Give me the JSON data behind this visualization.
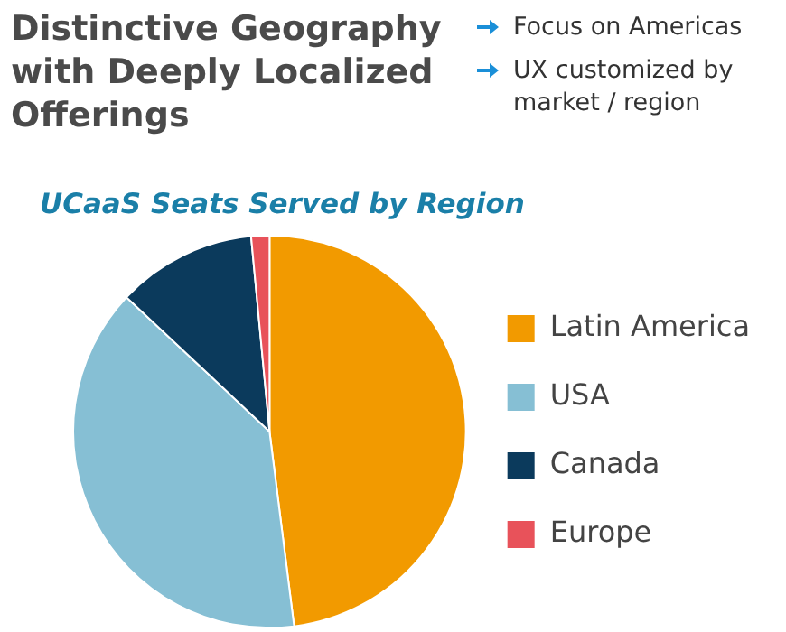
{
  "chart_data": {
    "type": "pie",
    "title": "Distinctive Geography with Deeply Localized Offerings",
    "subtitle": "UCaaS Seats Served by Region",
    "annotations": [
      "Focus on Americas",
      "UX customized by market / region"
    ],
    "categories": [
      "Latin America",
      "USA",
      "Canada",
      "Europe"
    ],
    "values": [
      48,
      39,
      11.5,
      1.5
    ],
    "colors": [
      "#f29a00",
      "#86bfd4",
      "#0b3a5c",
      "#e8525a"
    ],
    "legend": "right"
  }
}
